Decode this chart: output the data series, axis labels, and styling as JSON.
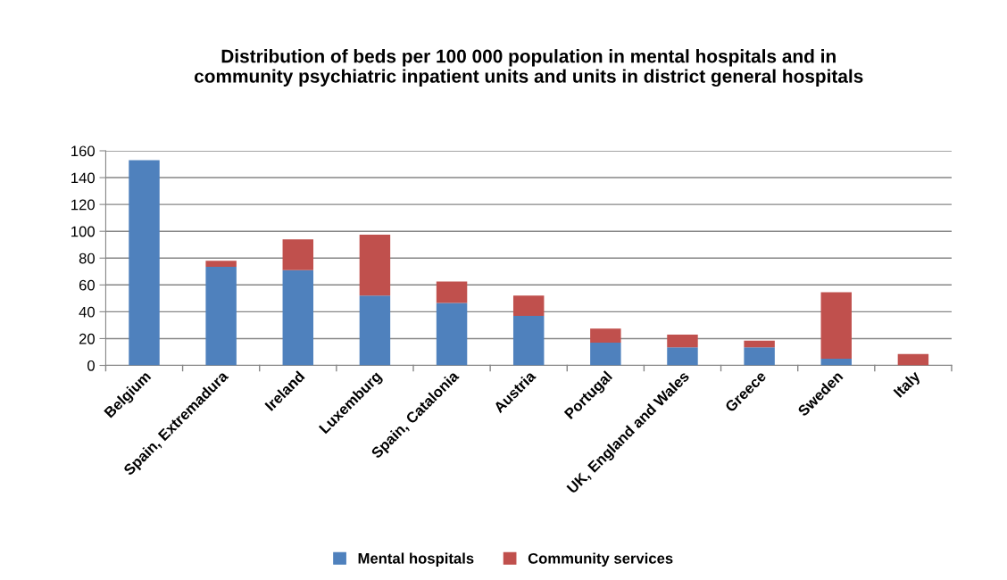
{
  "chart_data": {
    "type": "bar",
    "stacked": true,
    "title": "Distribution of beds per 100 000 population in mental hospitals and in\ncommunity psychiatric inpatient units and units in district general hospitals",
    "categories": [
      "Belgium",
      "Spain, Extremadura",
      "Ireland",
      "Luxemburg",
      "Spain, Catalonia",
      "Austria",
      "Portugal",
      "UK, England and Wales",
      "Greece",
      "Sweden",
      "Italy"
    ],
    "series": [
      {
        "name": "Mental hospitals",
        "color": "#4f81bd",
        "values": [
          153,
          73.5,
          71,
          52,
          46.5,
          37,
          17,
          13.5,
          13.5,
          5,
          0
        ]
      },
      {
        "name": "Community services",
        "color": "#c0504d",
        "values": [
          0,
          4.5,
          23,
          45.5,
          16,
          15,
          10.5,
          9.5,
          5,
          49.5,
          8.5
        ]
      }
    ],
    "ylim": [
      0,
      160
    ],
    "yticks": [
      0,
      20,
      40,
      60,
      80,
      100,
      120,
      140,
      160
    ],
    "grid": "y",
    "legend": "bottom"
  }
}
